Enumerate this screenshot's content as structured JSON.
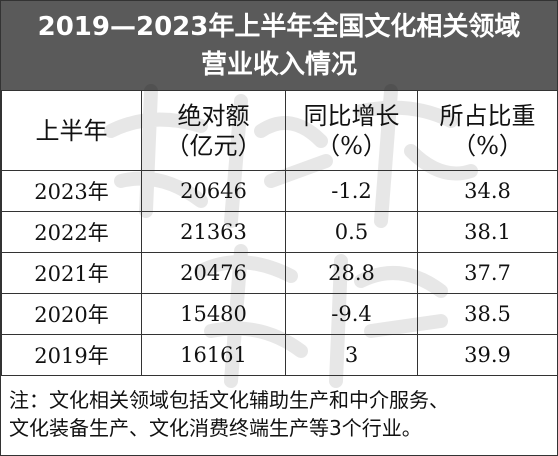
{
  "title": {
    "line1": "2019—2023年上半年全国文化相关领域",
    "line2": "营业收入情况"
  },
  "table": {
    "headers": [
      {
        "line1": "上半年",
        "line2": ""
      },
      {
        "line1": "绝对额",
        "line2": "（亿元）"
      },
      {
        "line1": "同比增长",
        "line2": "（%）"
      },
      {
        "line1": "所占比重",
        "line2": "（%）"
      }
    ],
    "rows": [
      [
        "2023年",
        "20646",
        "-1.2",
        "34.8"
      ],
      [
        "2022年",
        "21363",
        "0.5",
        "38.1"
      ],
      [
        "2021年",
        "20476",
        "28.8",
        "37.7"
      ],
      [
        "2020年",
        "15480",
        "-9.4",
        "38.5"
      ],
      [
        "2019年",
        "16161",
        "3",
        "39.9"
      ]
    ]
  },
  "note": {
    "line1": "注：文化相关领域包括文化辅助生产和中介服务、",
    "line2": "文化装备生产、文化消费终端生产等3个行业。"
  },
  "watermark": {
    "text": "文化产业评论",
    "type": "calligraphy-watermark"
  }
}
